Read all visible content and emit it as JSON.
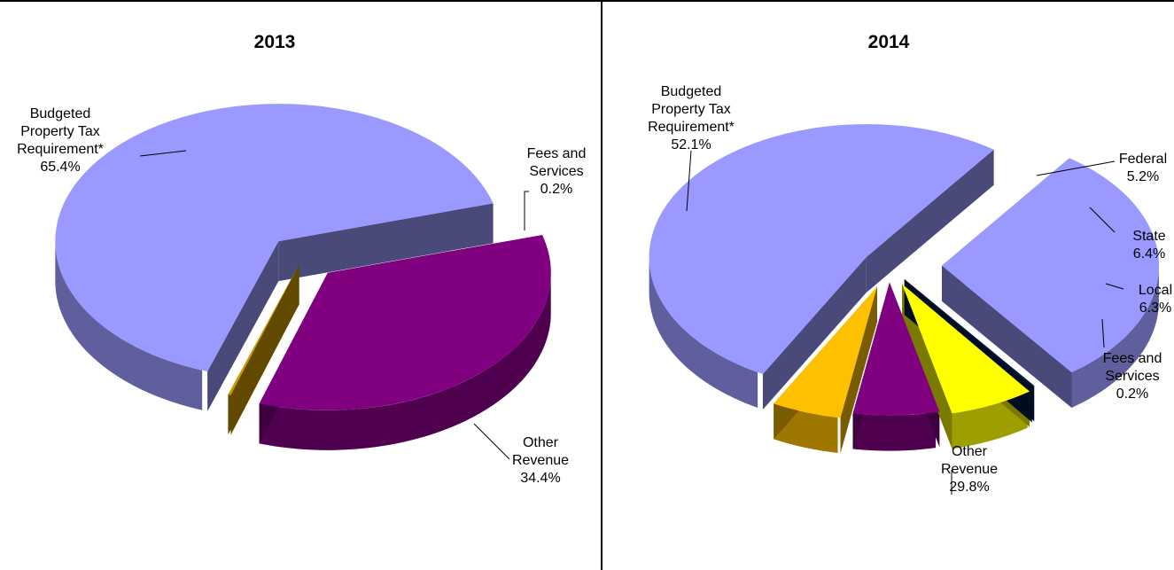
{
  "chart_data": [
    {
      "type": "pie",
      "title": "2013",
      "slices": [
        {
          "label": "Budgeted Property Tax Requirement*",
          "label_lines": [
            "Budgeted",
            "Property Tax",
            "Requirement*"
          ],
          "value": 65.4,
          "value_text": "65.4%",
          "color": "#9999ff"
        },
        {
          "label": "Fees and Services",
          "label_lines": [
            "Fees and",
            "Services"
          ],
          "value": 0.2,
          "value_text": "0.2%",
          "color": "#cc9900"
        },
        {
          "label": "Other Revenue",
          "label_lines": [
            "Other",
            "Revenue"
          ],
          "value": 34.4,
          "value_text": "34.4%",
          "color": "#800080"
        }
      ]
    },
    {
      "type": "pie",
      "title": "2014",
      "slices": [
        {
          "label": "Budgeted Property Tax Requirement*",
          "label_lines": [
            "Budgeted",
            "Property Tax",
            "Requirement*"
          ],
          "value": 52.1,
          "value_text": "52.1%",
          "color": "#9999ff"
        },
        {
          "label": "Federal",
          "label_lines": [
            "Federal"
          ],
          "value": 5.2,
          "value_text": "5.2%",
          "color": "#ffc000"
        },
        {
          "label": "State",
          "label_lines": [
            "State"
          ],
          "value": 6.4,
          "value_text": "6.4%",
          "color": "#800080"
        },
        {
          "label": "Local",
          "label_lines": [
            "Local"
          ],
          "value": 6.3,
          "value_text": "6.3%",
          "color": "#ffff00"
        },
        {
          "label": "Fees and Services",
          "label_lines": [
            "Fees and",
            "Services"
          ],
          "value": 0.2,
          "value_text": "0.2%",
          "color": "#001a40"
        },
        {
          "label": "Other Revenue",
          "label_lines": [
            "Other",
            "Revenue"
          ],
          "value": 29.8,
          "value_text": "29.8%",
          "color": "#9999ff"
        }
      ]
    }
  ]
}
